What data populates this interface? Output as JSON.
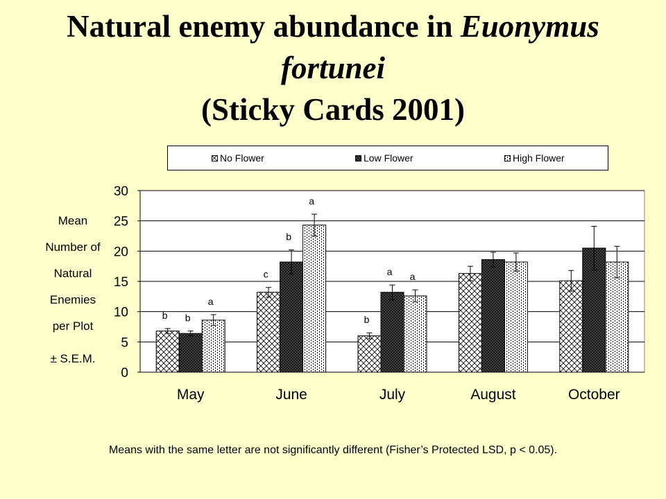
{
  "title": {
    "part1": "Natural enemy abundance in ",
    "part2_italic": "Euonymus",
    "line2_italic": "fortunei",
    "line3": "(Sticky Cards 2001)"
  },
  "ylabel_lines": [
    "Mean",
    "Number of",
    "Natural",
    "Enemies",
    "per Plot"
  ],
  "ylabel_sem": "± S.E.M.",
  "footnote": "Means with the same letter are not significantly different (Fisher’s Protected LSD, p < 0.05).",
  "colors": {
    "background": "#FFFFCC",
    "plot_bg": "#FFFFFF",
    "bar_stroke": "#000000"
  },
  "chart_data": {
    "type": "bar",
    "title": "Natural enemy abundance in Euonymus fortunei (Sticky Cards 2001)",
    "ylabel": "Mean Number of Natural Enemies per Plot ± S.E.M.",
    "xlabel": "",
    "ylim": [
      0,
      30
    ],
    "yticks": [
      0,
      5,
      10,
      15,
      20,
      25,
      30
    ],
    "grid": true,
    "legend_position": "top",
    "categories": [
      "May",
      "June",
      "July",
      "August",
      "October"
    ],
    "series": [
      {
        "name": "No Flower",
        "pattern": "crosshatch",
        "values": [
          6.8,
          13.2,
          6.0,
          16.3,
          15.1
        ],
        "errors": [
          0.4,
          0.8,
          0.5,
          1.2,
          1.7
        ],
        "letters": [
          "b",
          "c",
          "b",
          "",
          ""
        ]
      },
      {
        "name": "Low Flower",
        "pattern": "dense",
        "values": [
          6.4,
          18.2,
          13.2,
          18.6,
          20.5
        ],
        "errors": [
          0.4,
          2.0,
          1.2,
          1.2,
          3.6
        ],
        "letters": [
          "b",
          "b",
          "a",
          "",
          ""
        ]
      },
      {
        "name": "High Flower",
        "pattern": "dots",
        "values": [
          8.6,
          24.3,
          12.6,
          18.2,
          18.2
        ],
        "errors": [
          0.9,
          1.8,
          1.0,
          1.5,
          2.6
        ],
        "letters": [
          "a",
          "a",
          "a",
          "",
          ""
        ]
      }
    ]
  }
}
